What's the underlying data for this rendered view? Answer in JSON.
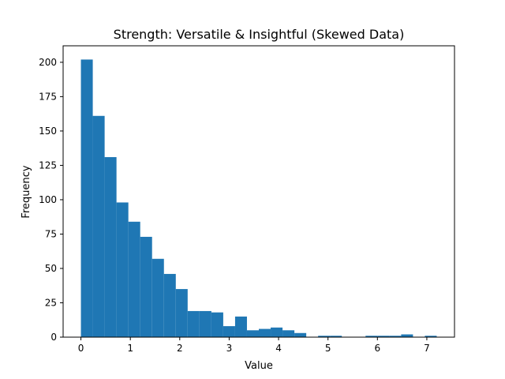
{
  "chart_data": {
    "type": "bar",
    "title": "Strength: Versatile & Insightful (Skewed Data)",
    "xlabel": "Value",
    "ylabel": "Frequency",
    "xlim": [
      -0.36,
      7.56
    ],
    "ylim": [
      0,
      212
    ],
    "xticks": [
      0,
      1,
      2,
      3,
      4,
      5,
      6,
      7
    ],
    "yticks": [
      0,
      25,
      50,
      75,
      100,
      125,
      150,
      175,
      200
    ],
    "bin_edges": [
      0.0,
      0.24,
      0.48,
      0.72,
      0.96,
      1.2,
      1.44,
      1.68,
      1.92,
      2.16,
      2.4,
      2.64,
      2.88,
      3.12,
      3.36,
      3.6,
      3.84,
      4.08,
      4.32,
      4.56,
      4.8,
      5.04,
      5.28,
      5.52,
      5.76,
      6.0,
      6.24,
      6.48,
      6.72,
      6.96,
      7.2
    ],
    "values": [
      202,
      161,
      131,
      98,
      84,
      73,
      57,
      46,
      35,
      19,
      19,
      18,
      8,
      15,
      5,
      6,
      7,
      5,
      3,
      0,
      1,
      1,
      0,
      0,
      1,
      1,
      1,
      2,
      0,
      1
    ],
    "bar_color": "#1f77b4",
    "grid": false
  }
}
